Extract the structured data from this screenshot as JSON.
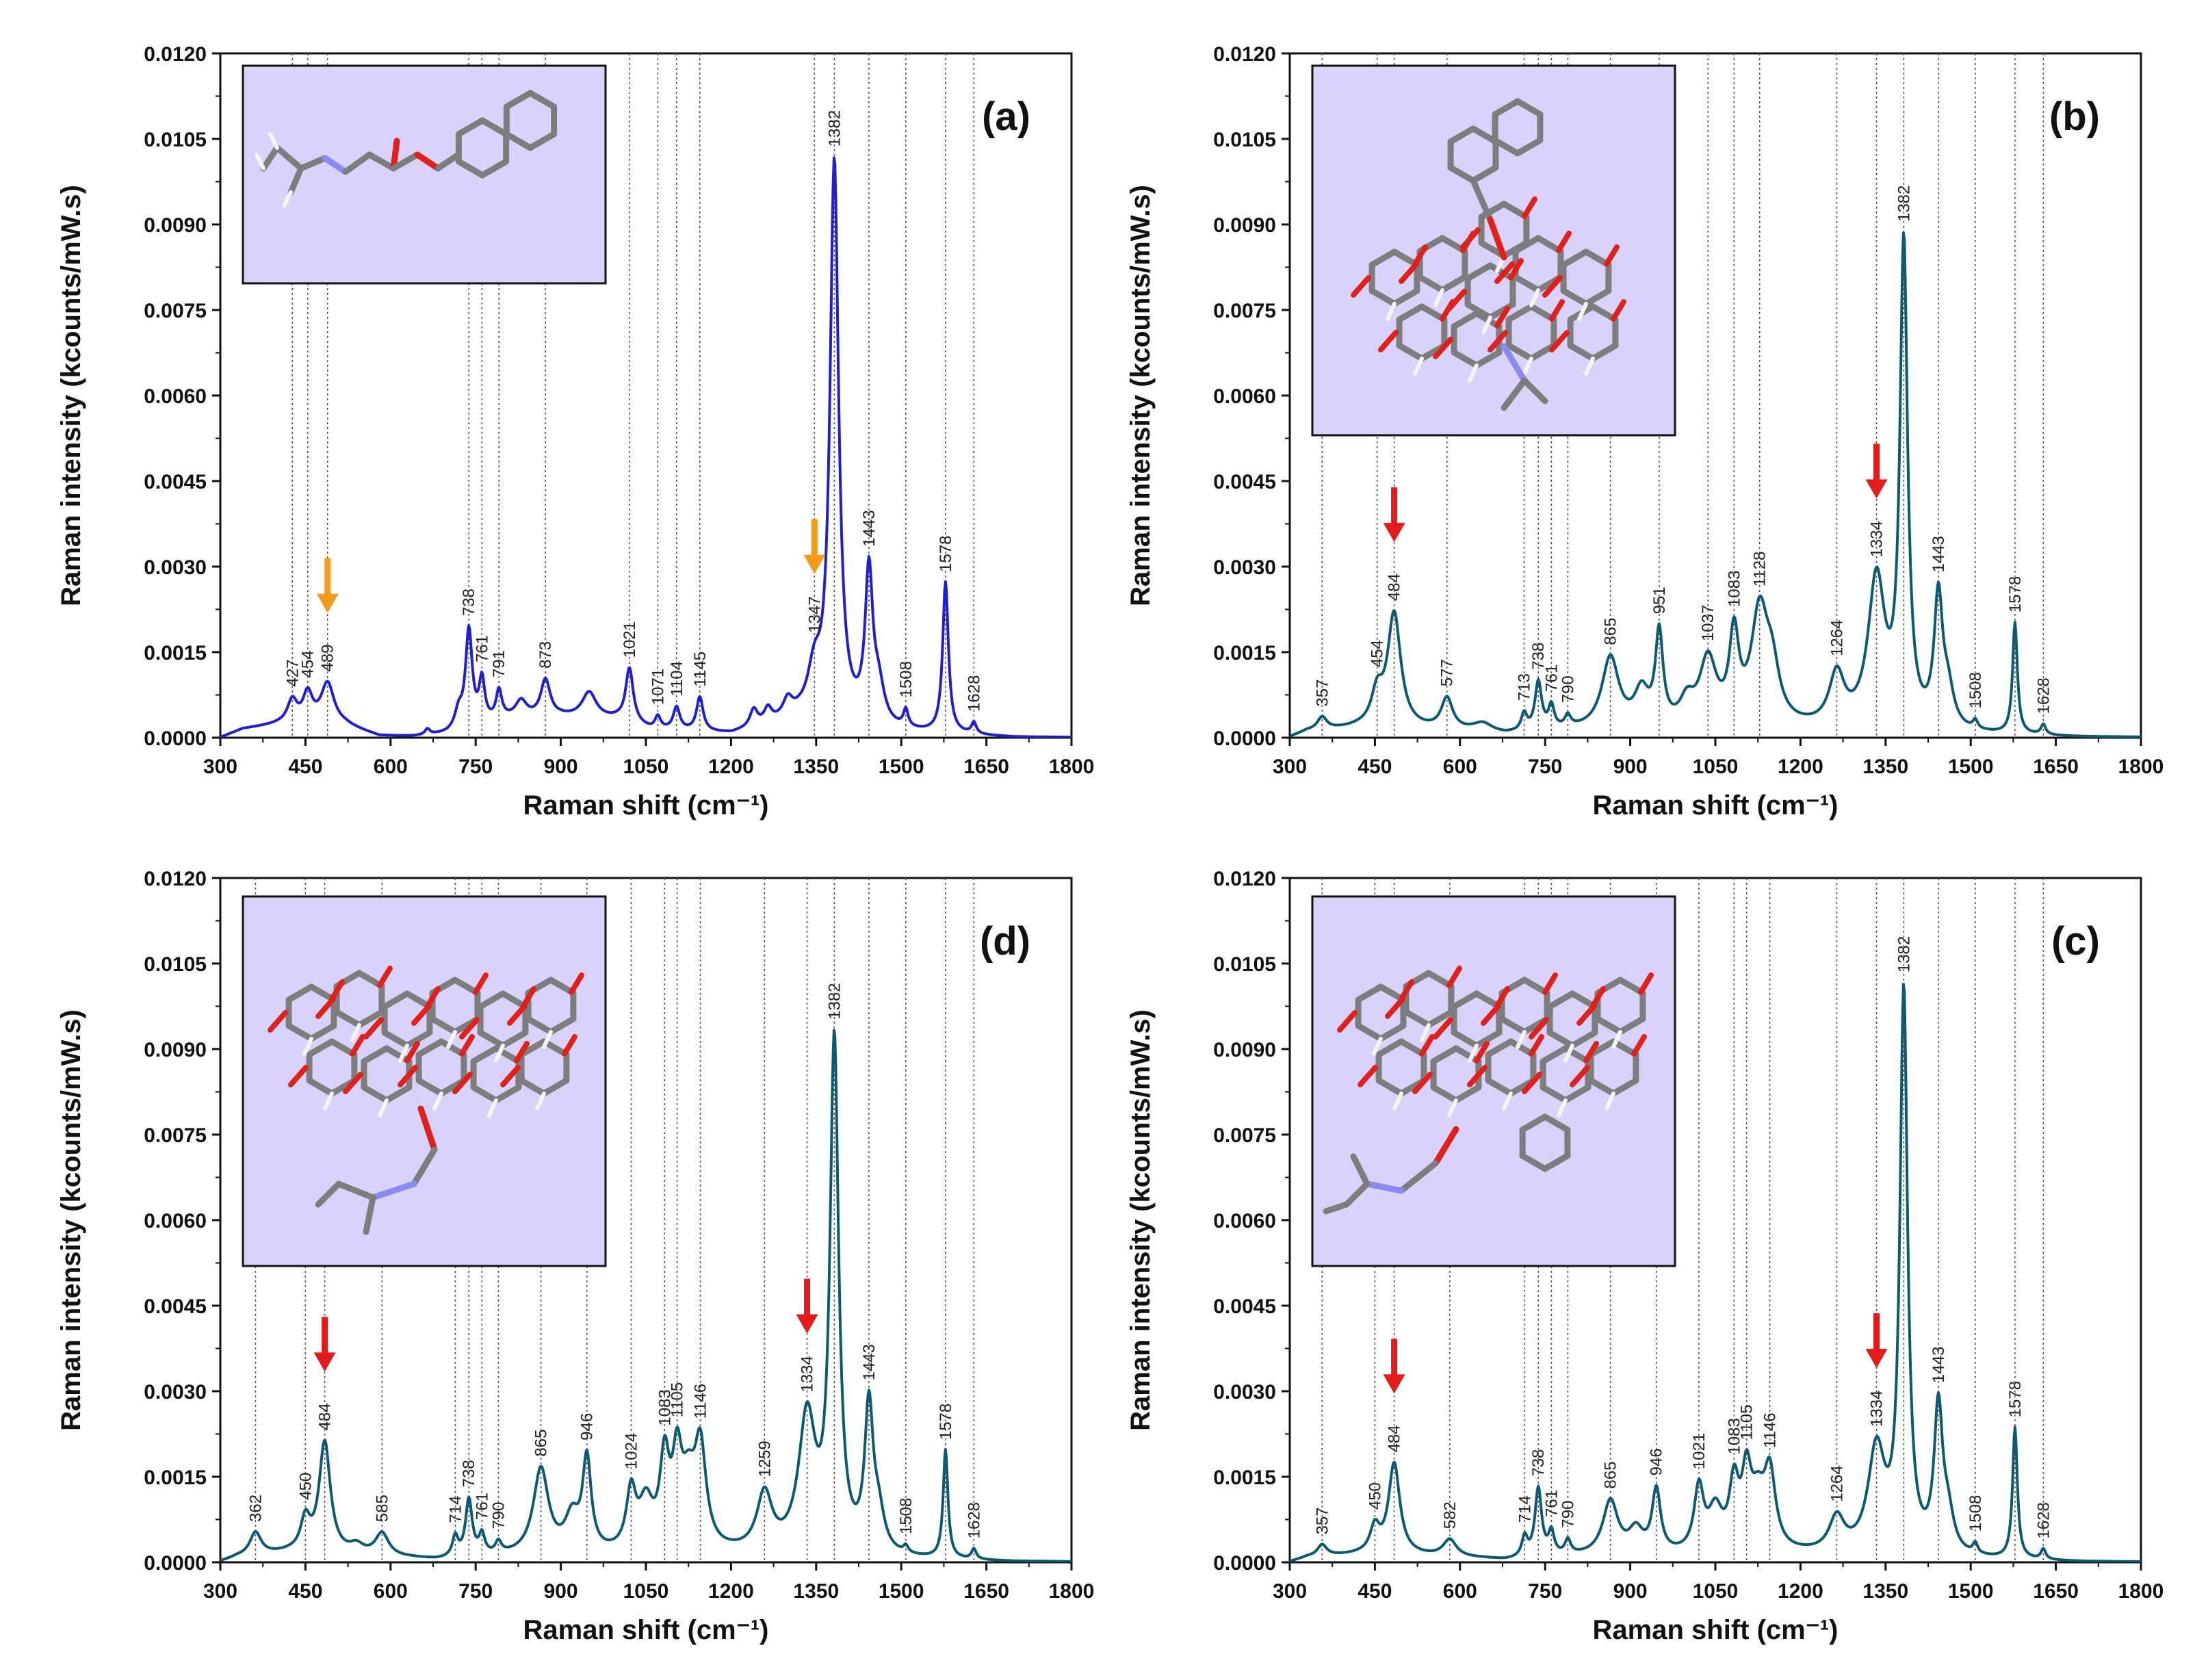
{
  "colors": {
    "panel_a_line": "#1f1fd0",
    "panel_bcd_line": "#0d5a70",
    "arrow_a": "#f29a1c",
    "arrow_bcd": "#e31b1b",
    "inset_bg": "#d9d2fa",
    "frame": "#111111",
    "guide": "#555555"
  },
  "chart_data": [
    {
      "id": "a",
      "type": "line",
      "panel_label": "(a)",
      "xlabel": "Raman shift (cm⁻¹)",
      "ylabel": "Raman intensity (kcounts/mW.s)",
      "xlim": [
        300,
        1800
      ],
      "ylim": [
        0,
        0.012
      ],
      "xticks": [
        "300",
        "450",
        "600",
        "750",
        "900",
        "1050",
        "1200",
        "1350",
        "1500",
        "1650",
        "1800"
      ],
      "yticks": [
        "0.0000",
        "0.0015",
        "0.0030",
        "0.0045",
        "0.0060",
        "0.0075",
        "0.0090",
        "0.0105",
        "0.0120"
      ],
      "inset_icon": "propranolol-molecule-icon",
      "peaks": [
        {
          "x": 427,
          "y": 0.00038,
          "w": 10,
          "label": "427",
          "guide": true
        },
        {
          "x": 454,
          "y": 0.0005,
          "w": 10,
          "label": "454",
          "guide": true
        },
        {
          "x": 489,
          "y": 0.00072,
          "w": 14,
          "label": "489",
          "guide": true
        },
        {
          "x": 738,
          "y": 0.0017,
          "w": 7,
          "label": "738",
          "guide": true
        },
        {
          "x": 761,
          "y": 0.00075,
          "w": 6,
          "label": "761",
          "guide": true
        },
        {
          "x": 791,
          "y": 0.0005,
          "w": 6,
          "label": "791",
          "guide": true
        },
        {
          "x": 873,
          "y": 0.00065,
          "w": 10,
          "label": "873",
          "guide": true
        },
        {
          "x": 1021,
          "y": 0.00095,
          "w": 8,
          "label": "1021",
          "guide": true
        },
        {
          "x": 1071,
          "y": 0.00022,
          "w": 6,
          "label": "1071",
          "guide": true
        },
        {
          "x": 1104,
          "y": 0.0004,
          "w": 7,
          "label": "1104",
          "guide": true
        },
        {
          "x": 1145,
          "y": 0.0006,
          "w": 7,
          "label": "1145",
          "guide": true
        },
        {
          "x": 1347,
          "y": 0.00075,
          "w": 14,
          "label": "1347",
          "guide": true
        },
        {
          "x": 1382,
          "y": 0.0098,
          "w": 9,
          "label": "1382",
          "guide": true
        },
        {
          "x": 1443,
          "y": 0.0026,
          "w": 8,
          "label": "1443",
          "guide": true
        },
        {
          "x": 1508,
          "y": 0.0003,
          "w": 5,
          "label": "1508",
          "guide": true
        },
        {
          "x": 1578,
          "y": 0.00265,
          "w": 6,
          "label": "1578",
          "guide": true
        },
        {
          "x": 1628,
          "y": 0.0002,
          "w": 5,
          "label": "1628",
          "guide": true
        },
        {
          "x": 665,
          "y": 0.0001,
          "w": 5,
          "label": "",
          "guide": false
        },
        {
          "x": 720,
          "y": 0.0003,
          "w": 8,
          "label": "",
          "guide": false
        },
        {
          "x": 830,
          "y": 0.0003,
          "w": 12,
          "label": "",
          "guide": false
        },
        {
          "x": 950,
          "y": 0.00045,
          "w": 15,
          "label": "",
          "guide": false
        },
        {
          "x": 1240,
          "y": 0.0003,
          "w": 8,
          "label": "",
          "guide": false
        },
        {
          "x": 1265,
          "y": 0.00025,
          "w": 8,
          "label": "",
          "guide": false
        },
        {
          "x": 1300,
          "y": 0.0003,
          "w": 10,
          "label": "",
          "guide": false
        },
        {
          "x": 1460,
          "y": 0.0006,
          "w": 12,
          "label": "",
          "guide": false
        }
      ],
      "baseline": [
        [
          300,
          0.0
        ],
        [
          340,
          0.00015
        ],
        [
          420,
          0.00025
        ],
        [
          520,
          0.0002
        ],
        [
          580,
          2e-05
        ],
        [
          640,
          1e-05
        ],
        [
          700,
          5e-05
        ],
        [
          800,
          0.0003
        ],
        [
          900,
          0.00035
        ],
        [
          1000,
          0.0003
        ],
        [
          1060,
          0.00012
        ],
        [
          1200,
          5e-05
        ],
        [
          1320,
          0.0003
        ],
        [
          1480,
          0.0001
        ],
        [
          1560,
          5e-05
        ],
        [
          1700,
          0.0
        ],
        [
          1800,
          0.0
        ]
      ],
      "arrows": [
        489,
        1347
      ]
    },
    {
      "id": "b",
      "type": "line",
      "panel_label": "(b)",
      "xlabel": "Raman shift (cm⁻¹)",
      "ylabel": "Raman intensity (kcounts/mW.s)",
      "xlim": [
        300,
        1800
      ],
      "ylim": [
        0,
        0.012
      ],
      "xticks": [
        "300",
        "450",
        "600",
        "750",
        "900",
        "1050",
        "1200",
        "1350",
        "1500",
        "1650",
        "1800"
      ],
      "yticks": [
        "0.0000",
        "0.0015",
        "0.0030",
        "0.0045",
        "0.0060",
        "0.0075",
        "0.0090",
        "0.0105",
        "0.0120"
      ],
      "inset_icon": "inclusion-complex-b-molecule-icon",
      "peaks": [
        {
          "x": 357,
          "y": 0.00022,
          "w": 10,
          "label": "357",
          "guide": true
        },
        {
          "x": 454,
          "y": 0.00055,
          "w": 12,
          "label": "454",
          "guide": true
        },
        {
          "x": 484,
          "y": 0.002,
          "w": 14,
          "label": "484",
          "guide": true
        },
        {
          "x": 577,
          "y": 0.00055,
          "w": 12,
          "label": "577",
          "guide": true
        },
        {
          "x": 713,
          "y": 0.0003,
          "w": 6,
          "label": "713",
          "guide": true
        },
        {
          "x": 738,
          "y": 0.00085,
          "w": 7,
          "label": "738",
          "guide": true
        },
        {
          "x": 761,
          "y": 0.0004,
          "w": 6,
          "label": "761",
          "guide": true
        },
        {
          "x": 790,
          "y": 0.0002,
          "w": 6,
          "label": "790",
          "guide": true
        },
        {
          "x": 865,
          "y": 0.00125,
          "w": 18,
          "label": "865",
          "guide": true
        },
        {
          "x": 951,
          "y": 0.0016,
          "w": 8,
          "label": "951",
          "guide": true
        },
        {
          "x": 1037,
          "y": 0.00115,
          "w": 18,
          "label": "1037",
          "guide": true
        },
        {
          "x": 1083,
          "y": 0.0015,
          "w": 10,
          "label": "1083",
          "guide": true
        },
        {
          "x": 1128,
          "y": 0.00195,
          "w": 18,
          "label": "1128",
          "guide": true
        },
        {
          "x": 1264,
          "y": 0.0009,
          "w": 16,
          "label": "1264",
          "guide": true
        },
        {
          "x": 1334,
          "y": 0.0026,
          "w": 18,
          "label": "1334",
          "guide": true
        },
        {
          "x": 1382,
          "y": 0.0084,
          "w": 8,
          "label": "1382",
          "guide": true
        },
        {
          "x": 1443,
          "y": 0.00225,
          "w": 9,
          "label": "1443",
          "guide": true
        },
        {
          "x": 1508,
          "y": 0.00015,
          "w": 5,
          "label": "1508",
          "guide": true
        },
        {
          "x": 1578,
          "y": 0.00195,
          "w": 5,
          "label": "1578",
          "guide": true
        },
        {
          "x": 1628,
          "y": 0.00018,
          "w": 5,
          "label": "1628",
          "guide": true
        },
        {
          "x": 920,
          "y": 0.0006,
          "w": 15,
          "label": "",
          "guide": false
        },
        {
          "x": 1000,
          "y": 0.0004,
          "w": 15,
          "label": "",
          "guide": false
        },
        {
          "x": 1150,
          "y": 0.0008,
          "w": 15,
          "label": "",
          "guide": false
        },
        {
          "x": 1460,
          "y": 0.0006,
          "w": 12,
          "label": "",
          "guide": false
        },
        {
          "x": 640,
          "y": 0.00015,
          "w": 20,
          "label": "",
          "guide": false
        }
      ],
      "baseline": [
        [
          300,
          0.0
        ],
        [
          330,
          0.0001
        ],
        [
          420,
          0.00015
        ],
        [
          520,
          0.00012
        ],
        [
          620,
          8e-05
        ],
        [
          680,
          3e-05
        ],
        [
          800,
          0.0001
        ],
        [
          1200,
          0.0001
        ],
        [
          1500,
          3e-05
        ],
        [
          1700,
          0.0
        ],
        [
          1800,
          0.0
        ]
      ],
      "arrows": [
        484,
        1334
      ]
    },
    {
      "id": "d",
      "type": "line",
      "panel_label": "(d)",
      "xlabel": "Raman shift (cm⁻¹)",
      "ylabel": "Raman intensity (kcounts/mW.s)",
      "xlim": [
        300,
        1800
      ],
      "ylim": [
        0,
        0.012
      ],
      "xticks": [
        "300",
        "450",
        "600",
        "750",
        "900",
        "1050",
        "1200",
        "1350",
        "1500",
        "1650",
        "1800"
      ],
      "yticks": [
        "0.0000",
        "0.0015",
        "0.0030",
        "0.0045",
        "0.0060",
        "0.0075",
        "0.0090",
        "0.0105",
        "0.0120"
      ],
      "inset_icon": "inclusion-complex-d-molecule-icon",
      "peaks": [
        {
          "x": 362,
          "y": 0.0004,
          "w": 12,
          "label": "362",
          "guide": true
        },
        {
          "x": 450,
          "y": 0.00055,
          "w": 10,
          "label": "450",
          "guide": true
        },
        {
          "x": 484,
          "y": 0.00195,
          "w": 12,
          "label": "484",
          "guide": true
        },
        {
          "x": 585,
          "y": 0.0004,
          "w": 14,
          "label": "585",
          "guide": true
        },
        {
          "x": 714,
          "y": 0.00035,
          "w": 6,
          "label": "714",
          "guide": true
        },
        {
          "x": 738,
          "y": 0.001,
          "w": 7,
          "label": "738",
          "guide": true
        },
        {
          "x": 761,
          "y": 0.00035,
          "w": 6,
          "label": "761",
          "guide": true
        },
        {
          "x": 790,
          "y": 0.0002,
          "w": 6,
          "label": "790",
          "guide": true
        },
        {
          "x": 865,
          "y": 0.0015,
          "w": 16,
          "label": "865",
          "guide": true
        },
        {
          "x": 946,
          "y": 0.0016,
          "w": 9,
          "label": "946",
          "guide": true
        },
        {
          "x": 1024,
          "y": 0.001,
          "w": 10,
          "label": "1024",
          "guide": true
        },
        {
          "x": 1083,
          "y": 0.0015,
          "w": 10,
          "label": "1083",
          "guide": true
        },
        {
          "x": 1105,
          "y": 0.0014,
          "w": 10,
          "label": "1105",
          "guide": true
        },
        {
          "x": 1146,
          "y": 0.0017,
          "w": 12,
          "label": "1146",
          "guide": true
        },
        {
          "x": 1259,
          "y": 0.001,
          "w": 16,
          "label": "1259",
          "guide": true
        },
        {
          "x": 1334,
          "y": 0.00235,
          "w": 18,
          "label": "1334",
          "guide": true
        },
        {
          "x": 1382,
          "y": 0.0089,
          "w": 9,
          "label": "1382",
          "guide": true
        },
        {
          "x": 1443,
          "y": 0.0025,
          "w": 9,
          "label": "1443",
          "guide": true
        },
        {
          "x": 1508,
          "y": 0.00012,
          "w": 5,
          "label": "1508",
          "guide": true
        },
        {
          "x": 1578,
          "y": 0.0019,
          "w": 5,
          "label": "1578",
          "guide": true
        },
        {
          "x": 1628,
          "y": 0.00018,
          "w": 5,
          "label": "1628",
          "guide": true
        },
        {
          "x": 920,
          "y": 0.0006,
          "w": 15,
          "label": "",
          "guide": false
        },
        {
          "x": 1050,
          "y": 0.0008,
          "w": 15,
          "label": "",
          "guide": false
        },
        {
          "x": 1125,
          "y": 0.001,
          "w": 15,
          "label": "",
          "guide": false
        },
        {
          "x": 1460,
          "y": 0.0006,
          "w": 12,
          "label": "",
          "guide": false
        },
        {
          "x": 540,
          "y": 0.00015,
          "w": 15,
          "label": "",
          "guide": false
        }
      ],
      "baseline": [
        [
          300,
          0.0
        ],
        [
          330,
          8e-05
        ],
        [
          420,
          0.00015
        ],
        [
          520,
          0.0001
        ],
        [
          640,
          5e-05
        ],
        [
          680,
          2e-05
        ],
        [
          800,
          8e-05
        ],
        [
          1200,
          0.0001
        ],
        [
          1500,
          3e-05
        ],
        [
          1700,
          0.0
        ],
        [
          1800,
          0.0
        ]
      ],
      "arrows": [
        484,
        1334
      ]
    },
    {
      "id": "c",
      "type": "line",
      "panel_label": "(c)",
      "xlabel": "Raman shift (cm⁻¹)",
      "ylabel": "Raman intensity (kcounts/mW.s)",
      "xlim": [
        300,
        1800
      ],
      "ylim": [
        0,
        0.012
      ],
      "xticks": [
        "300",
        "450",
        "600",
        "750",
        "900",
        "1050",
        "1200",
        "1350",
        "1500",
        "1650",
        "1800"
      ],
      "yticks": [
        "0.0000",
        "0.0015",
        "0.0030",
        "0.0045",
        "0.0060",
        "0.0075",
        "0.0090",
        "0.0105",
        "0.0120"
      ],
      "inset_icon": "inclusion-complex-c-molecule-icon",
      "peaks": [
        {
          "x": 357,
          "y": 0.0002,
          "w": 10,
          "label": "357",
          "guide": true
        },
        {
          "x": 450,
          "y": 0.00045,
          "w": 10,
          "label": "450",
          "guide": true
        },
        {
          "x": 484,
          "y": 0.0016,
          "w": 12,
          "label": "484",
          "guide": true
        },
        {
          "x": 582,
          "y": 0.0003,
          "w": 14,
          "label": "582",
          "guide": true
        },
        {
          "x": 714,
          "y": 0.00035,
          "w": 6,
          "label": "714",
          "guide": true
        },
        {
          "x": 738,
          "y": 0.0012,
          "w": 7,
          "label": "738",
          "guide": true
        },
        {
          "x": 761,
          "y": 0.0004,
          "w": 6,
          "label": "761",
          "guide": true
        },
        {
          "x": 790,
          "y": 0.00025,
          "w": 6,
          "label": "790",
          "guide": true
        },
        {
          "x": 865,
          "y": 0.00095,
          "w": 16,
          "label": "865",
          "guide": true
        },
        {
          "x": 946,
          "y": 0.0011,
          "w": 9,
          "label": "946",
          "guide": true
        },
        {
          "x": 1021,
          "y": 0.0011,
          "w": 10,
          "label": "1021",
          "guide": true
        },
        {
          "x": 1083,
          "y": 0.0011,
          "w": 10,
          "label": "1083",
          "guide": true
        },
        {
          "x": 1105,
          "y": 0.0012,
          "w": 10,
          "label": "1105",
          "guide": true
        },
        {
          "x": 1146,
          "y": 0.0013,
          "w": 12,
          "label": "1146",
          "guide": true
        },
        {
          "x": 1264,
          "y": 0.0006,
          "w": 16,
          "label": "1264",
          "guide": true
        },
        {
          "x": 1334,
          "y": 0.0018,
          "w": 18,
          "label": "1334",
          "guide": true
        },
        {
          "x": 1382,
          "y": 0.0098,
          "w": 8,
          "label": "1382",
          "guide": true
        },
        {
          "x": 1443,
          "y": 0.0025,
          "w": 9,
          "label": "1443",
          "guide": true
        },
        {
          "x": 1508,
          "y": 0.00018,
          "w": 5,
          "label": "1508",
          "guide": true
        },
        {
          "x": 1578,
          "y": 0.0023,
          "w": 5,
          "label": "1578",
          "guide": true
        },
        {
          "x": 1628,
          "y": 0.00018,
          "w": 5,
          "label": "1628",
          "guide": true
        },
        {
          "x": 910,
          "y": 0.0004,
          "w": 15,
          "label": "",
          "guide": false
        },
        {
          "x": 1050,
          "y": 0.0007,
          "w": 15,
          "label": "",
          "guide": false
        },
        {
          "x": 1125,
          "y": 0.0008,
          "w": 15,
          "label": "",
          "guide": false
        },
        {
          "x": 1460,
          "y": 0.0006,
          "w": 12,
          "label": "",
          "guide": false
        }
      ],
      "baseline": [
        [
          300,
          0.0
        ],
        [
          330,
          8e-05
        ],
        [
          420,
          0.00012
        ],
        [
          520,
          0.0001
        ],
        [
          640,
          5e-05
        ],
        [
          680,
          2e-05
        ],
        [
          800,
          8e-05
        ],
        [
          1200,
          0.0001
        ],
        [
          1500,
          3e-05
        ],
        [
          1700,
          0.0
        ],
        [
          1800,
          0.0
        ]
      ],
      "arrows": [
        484,
        1334
      ]
    }
  ]
}
